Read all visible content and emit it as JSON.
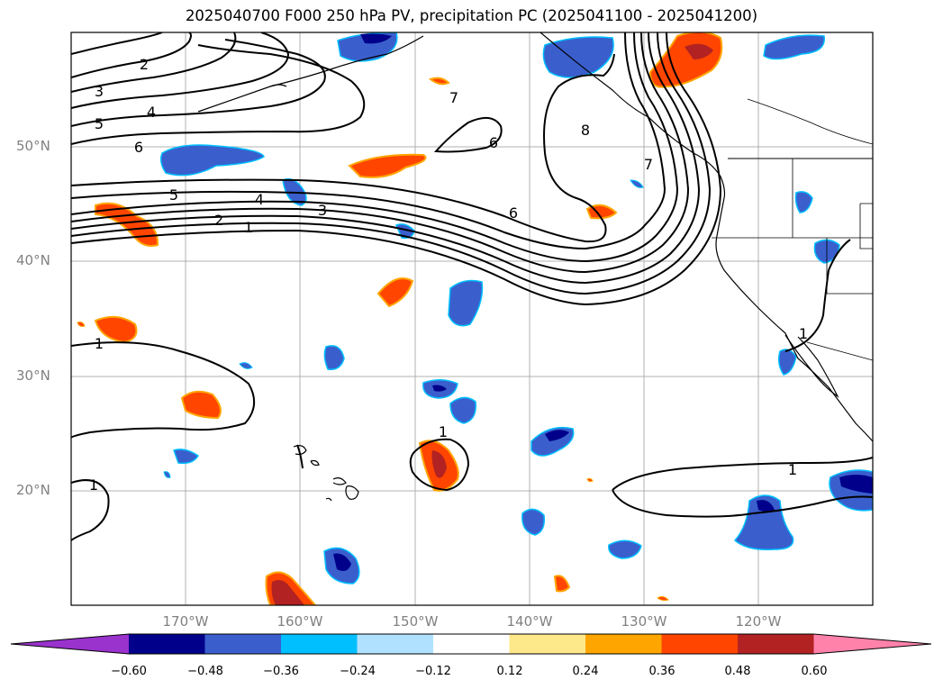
{
  "title": "2025040700 F000 250 hPa PV, precipitation PC (2025041100 - 2025041200)",
  "lat_labels": [
    "50°N",
    "40°N",
    "30°N",
    "20°N"
  ],
  "lon_labels": [
    "170°W",
    "160°W",
    "150°W",
    "140°W",
    "130°W",
    "120°W"
  ],
  "map_extent": {
    "lon_min": -180,
    "lon_max": -110,
    "lat_min": 10,
    "lat_max": 60
  },
  "pv_contour_labels": [
    "1",
    "2",
    "3",
    "4",
    "5",
    "6",
    "7",
    "8"
  ],
  "colorbar": {
    "ticks": [
      "−0.60",
      "−0.48",
      "−0.36",
      "−0.24",
      "−0.12",
      "0.12",
      "0.24",
      "0.36",
      "0.48",
      "0.60"
    ],
    "colors": [
      "#9a32cd",
      "#00008b",
      "#3a5fcd",
      "#00bfff",
      "#b0e2ff",
      "#ffffff",
      "#fde98a",
      "#ffa500",
      "#ff4500",
      "#b22222",
      "#ff82ab"
    ]
  }
}
